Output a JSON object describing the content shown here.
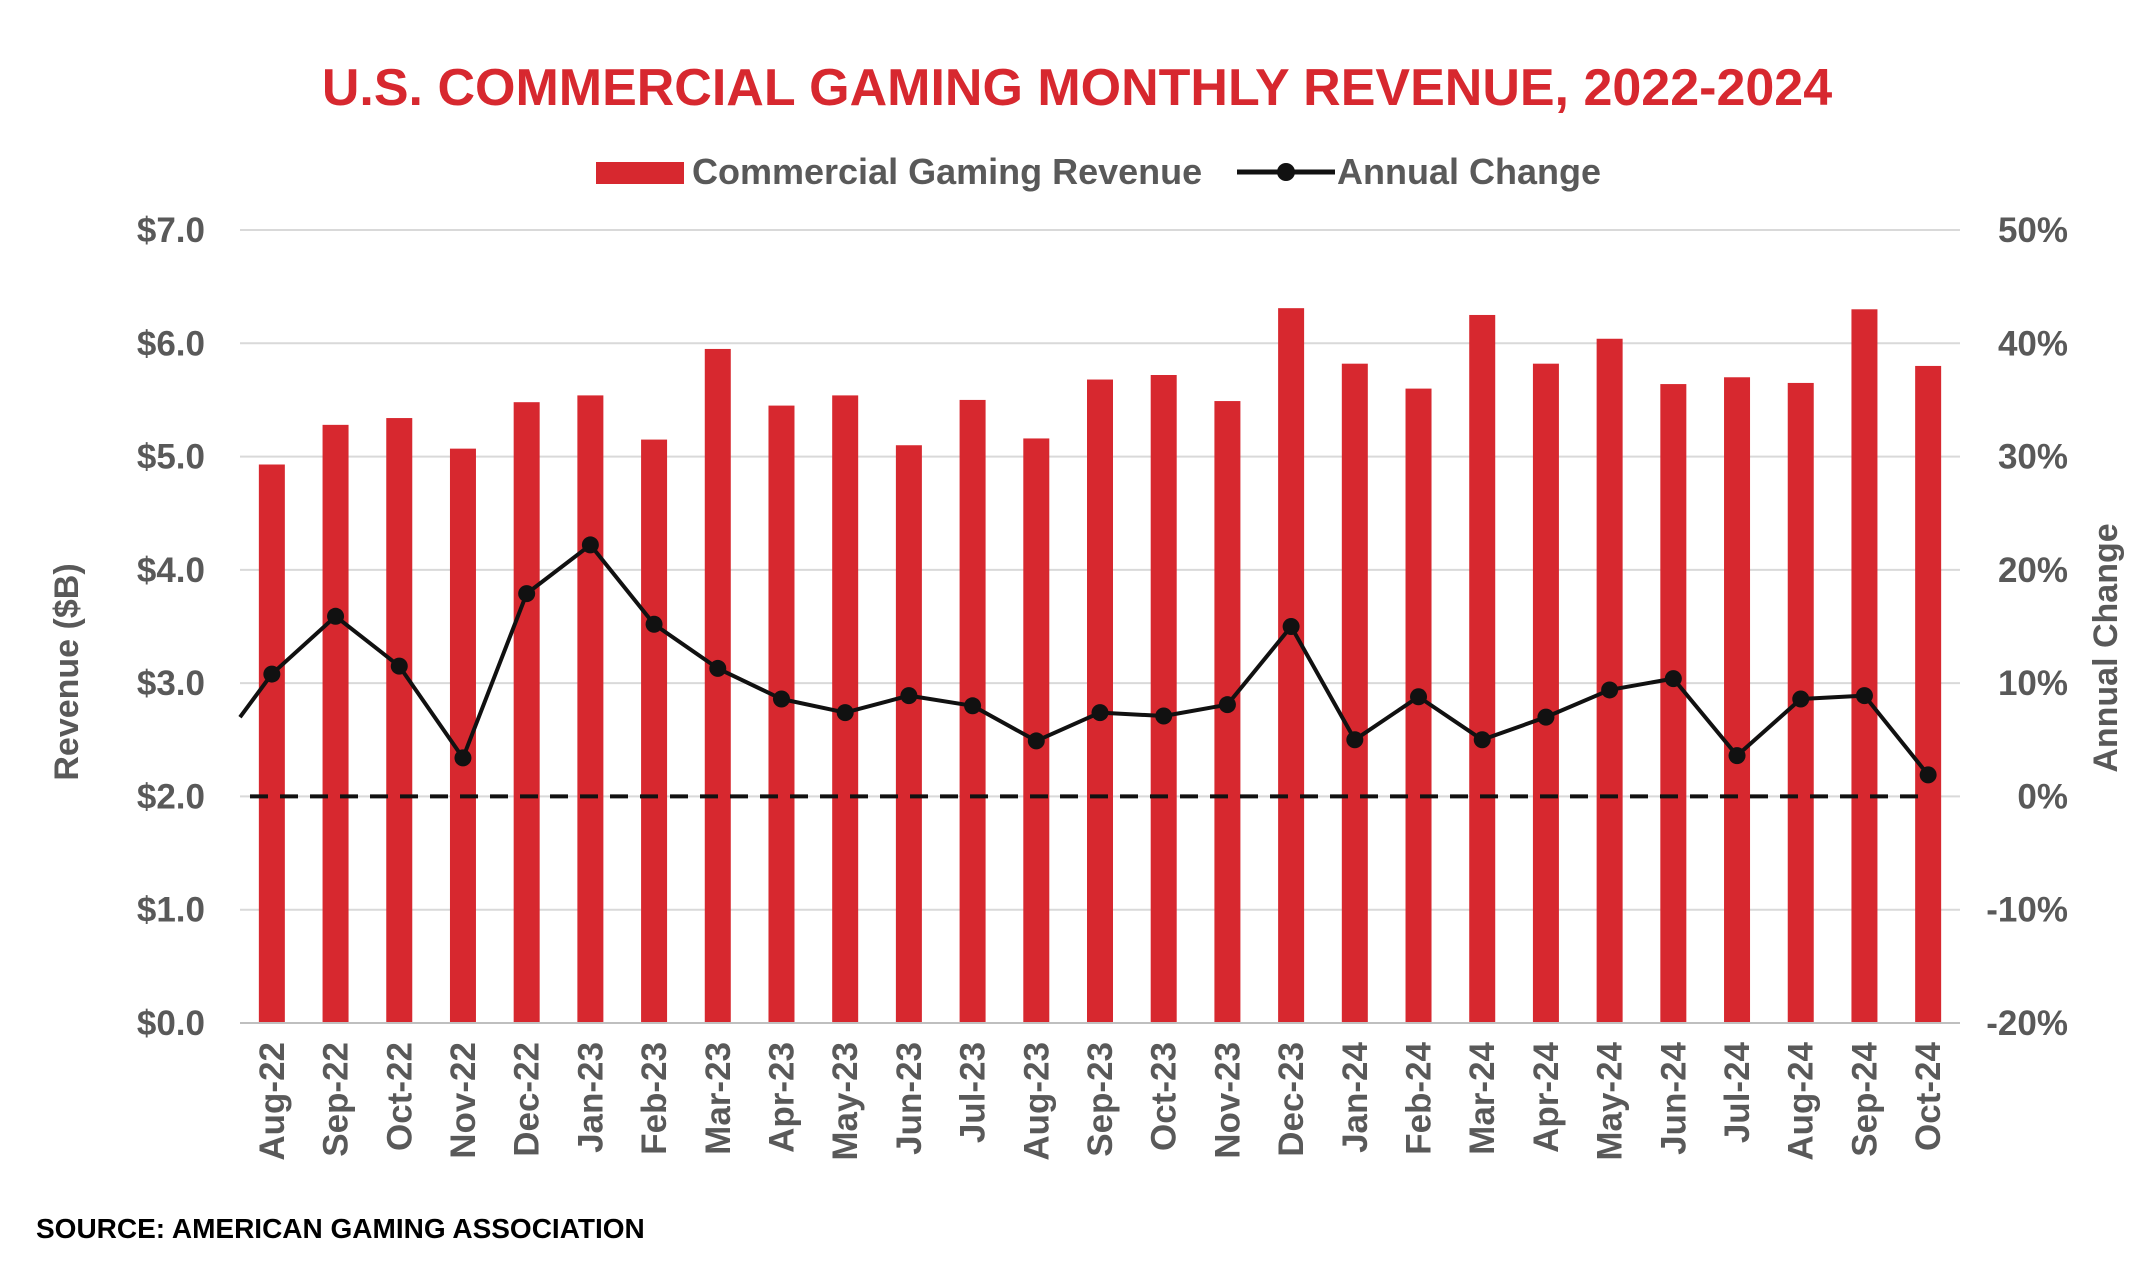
{
  "colors": {
    "bar": "#d7282f",
    "line": "#111111",
    "title": "#d7282f",
    "text": "#595959",
    "grid": "#d9d9d9"
  },
  "chart_data": {
    "type": "bar",
    "title": "U.S. COMMERCIAL GAMING MONTHLY REVENUE, 2022-2024",
    "ylabel": "Revenue ($B)",
    "y2label": "Annual Change",
    "source": "SOURCE: AMERICAN GAMING ASSOCIATION",
    "legend_position": "top-center",
    "grid": true,
    "ylim": [
      0,
      7
    ],
    "y2lim": [
      -20,
      50
    ],
    "yticks": [
      "$0.0",
      "$1.0",
      "$2.0",
      "$3.0",
      "$4.0",
      "$5.0",
      "$6.0",
      "$7.0"
    ],
    "y2ticks": [
      "-20%",
      "-10%",
      "0%",
      "10%",
      "20%",
      "30%",
      "40%",
      "50%"
    ],
    "categories": [
      "Aug-22",
      "Sep-22",
      "Oct-22",
      "Nov-22",
      "Dec-22",
      "Jan-23",
      "Feb-23",
      "Mar-23",
      "Apr-23",
      "May-23",
      "Jun-23",
      "Jul-23",
      "Aug-23",
      "Sep-23",
      "Oct-23",
      "Nov-23",
      "Dec-23",
      "Jan-24",
      "Feb-24",
      "Mar-24",
      "Apr-24",
      "May-24",
      "Jun-24",
      "Jul-24",
      "Aug-24",
      "Sep-24",
      "Oct-24"
    ],
    "series": [
      {
        "name": "Commercial Gaming Revenue",
        "kind": "bar",
        "axis": "left",
        "values": [
          4.93,
          5.28,
          5.34,
          5.07,
          5.48,
          5.54,
          5.15,
          5.95,
          5.45,
          5.54,
          5.1,
          5.5,
          5.16,
          5.68,
          5.72,
          5.49,
          6.31,
          5.82,
          5.6,
          6.25,
          5.82,
          6.04,
          5.64,
          5.7,
          5.65,
          6.3,
          5.8
        ]
      },
      {
        "name": "Annual Change",
        "kind": "line",
        "axis": "right",
        "values": [
          10.8,
          15.9,
          11.5,
          3.4,
          17.9,
          22.2,
          15.2,
          11.3,
          8.6,
          7.4,
          8.9,
          8.0,
          4.9,
          7.4,
          7.1,
          8.1,
          15.0,
          5.0,
          8.8,
          5.0,
          7.0,
          9.4,
          10.4,
          3.6,
          8.6,
          8.9,
          1.9
        ]
      }
    ],
    "line_start_value": 7.0,
    "reference_line": {
      "axis": "left",
      "value": 2.0,
      "style": "dashed"
    }
  }
}
